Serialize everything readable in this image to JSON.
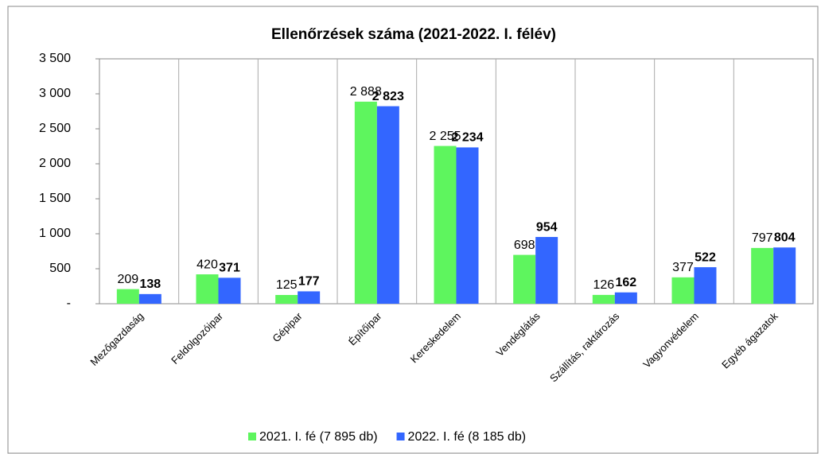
{
  "chart_data": {
    "type": "bar",
    "title": "Ellenőrzések száma (2021-2022. I. félév)",
    "categories": [
      "Mezőgazdaság",
      "Feldolgozóipar",
      "Gépipar",
      "Építőipar",
      "Kereskedelem",
      "Vendéglátás",
      "Szállítás, raktározás",
      "Vagyonvédelem",
      "Egyéb ágazatok"
    ],
    "series": [
      {
        "name": "2021. I. fé (7 895 db)",
        "color": "#5ef55e",
        "values": [
          209,
          420,
          125,
          2888,
          2255,
          698,
          126,
          377,
          797
        ],
        "value_labels": [
          "209",
          "420",
          "125",
          "2 888",
          "2 255",
          "698",
          "126",
          "377",
          "797"
        ]
      },
      {
        "name": "2022. I. fé (8 185 db)",
        "color": "#3366ff",
        "values": [
          138,
          371,
          177,
          2823,
          2234,
          954,
          162,
          522,
          804
        ],
        "value_labels": [
          "138",
          "371",
          "177",
          "2 823",
          "2 234",
          "954",
          "162",
          "522",
          "804"
        ]
      }
    ],
    "ylim": [
      0,
      3500
    ],
    "yticks": [
      {
        "value": 0,
        "label": "-"
      },
      500,
      {
        "value": 1000,
        "label": "1 000"
      },
      {
        "value": 1500,
        "label": "1 500"
      },
      {
        "value": 2000,
        "label": "2 000"
      },
      {
        "value": 2500,
        "label": "2 500"
      },
      {
        "value": 3000,
        "label": "3 000"
      },
      {
        "value": 3500,
        "label": "3 500"
      }
    ],
    "legend": "bottom"
  }
}
